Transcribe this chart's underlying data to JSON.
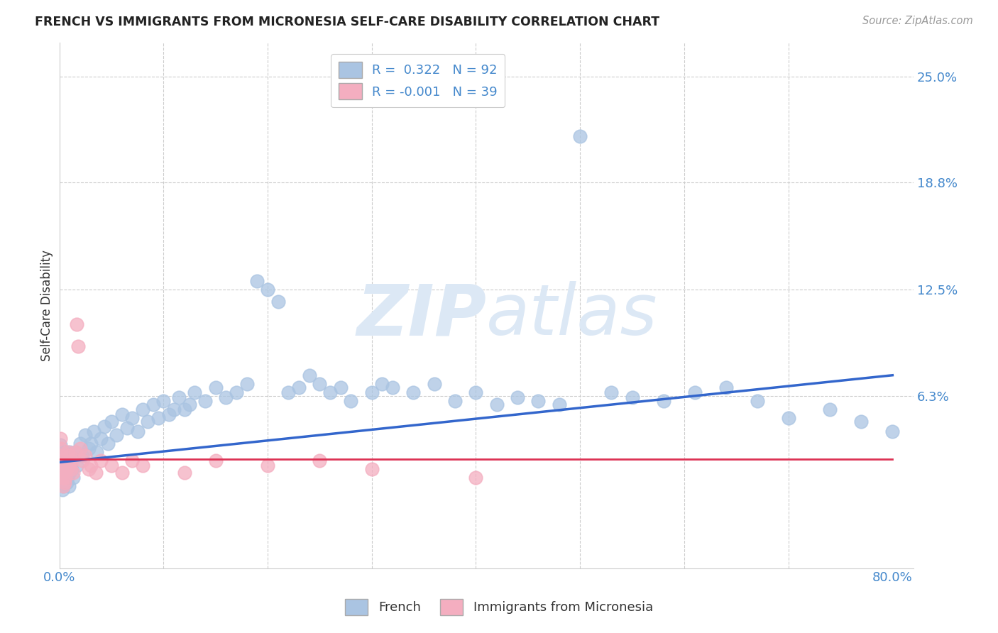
{
  "title": "FRENCH VS IMMIGRANTS FROM MICRONESIA SELF-CARE DISABILITY CORRELATION CHART",
  "source": "Source: ZipAtlas.com",
  "ylabel": "Self-Care Disability",
  "xlim": [
    0.0,
    0.82
  ],
  "ylim": [
    -0.038,
    0.27
  ],
  "ytick_values": [
    0.0,
    0.063,
    0.125,
    0.188,
    0.25
  ],
  "ytick_labels": [
    "",
    "6.3%",
    "12.5%",
    "18.8%",
    "25.0%"
  ],
  "xtick_values": [
    0.0,
    0.1,
    0.2,
    0.3,
    0.4,
    0.5,
    0.6,
    0.7,
    0.8
  ],
  "xtick_labels": [
    "0.0%",
    "",
    "",
    "",
    "",
    "",
    "",
    "",
    "80.0%"
  ],
  "french_R": 0.322,
  "french_N": 92,
  "micro_R": -0.001,
  "micro_N": 39,
  "french_color": "#aac4e2",
  "french_edge_color": "#aac4e2",
  "french_line_color": "#3366cc",
  "micro_color": "#f4aec0",
  "micro_edge_color": "#f4aec0",
  "micro_line_color": "#dd3355",
  "grid_color": "#cccccc",
  "title_color": "#222222",
  "source_color": "#999999",
  "label_color": "#333333",
  "tick_color": "#4488cc",
  "watermark_color": "#dce8f5",
  "french_x": [
    0.001,
    0.001,
    0.002,
    0.002,
    0.002,
    0.003,
    0.003,
    0.003,
    0.004,
    0.004,
    0.004,
    0.005,
    0.005,
    0.006,
    0.006,
    0.007,
    0.007,
    0.008,
    0.008,
    0.009,
    0.009,
    0.01,
    0.01,
    0.011,
    0.012,
    0.013,
    0.015,
    0.017,
    0.02,
    0.022,
    0.025,
    0.028,
    0.03,
    0.033,
    0.036,
    0.04,
    0.043,
    0.047,
    0.05,
    0.055,
    0.06,
    0.065,
    0.07,
    0.075,
    0.08,
    0.085,
    0.09,
    0.095,
    0.1,
    0.105,
    0.11,
    0.115,
    0.12,
    0.125,
    0.13,
    0.14,
    0.15,
    0.16,
    0.17,
    0.18,
    0.19,
    0.2,
    0.21,
    0.22,
    0.23,
    0.24,
    0.25,
    0.26,
    0.27,
    0.28,
    0.3,
    0.31,
    0.32,
    0.34,
    0.36,
    0.38,
    0.4,
    0.42,
    0.44,
    0.46,
    0.48,
    0.5,
    0.53,
    0.55,
    0.58,
    0.61,
    0.64,
    0.67,
    0.7,
    0.74,
    0.77,
    0.8
  ],
  "french_y": [
    0.034,
    0.028,
    0.025,
    0.02,
    0.015,
    0.018,
    0.012,
    0.008,
    0.022,
    0.016,
    0.01,
    0.03,
    0.014,
    0.025,
    0.018,
    0.02,
    0.012,
    0.028,
    0.015,
    0.022,
    0.01,
    0.03,
    0.018,
    0.025,
    0.02,
    0.015,
    0.03,
    0.022,
    0.035,
    0.028,
    0.04,
    0.032,
    0.035,
    0.042,
    0.03,
    0.038,
    0.045,
    0.035,
    0.048,
    0.04,
    0.052,
    0.044,
    0.05,
    0.042,
    0.055,
    0.048,
    0.058,
    0.05,
    0.06,
    0.052,
    0.055,
    0.062,
    0.055,
    0.058,
    0.065,
    0.06,
    0.068,
    0.062,
    0.065,
    0.07,
    0.13,
    0.125,
    0.118,
    0.065,
    0.068,
    0.075,
    0.07,
    0.065,
    0.068,
    0.06,
    0.065,
    0.07,
    0.068,
    0.065,
    0.07,
    0.06,
    0.065,
    0.058,
    0.062,
    0.06,
    0.058,
    0.215,
    0.065,
    0.062,
    0.06,
    0.065,
    0.068,
    0.06,
    0.05,
    0.055,
    0.048,
    0.042
  ],
  "micro_x": [
    0.001,
    0.001,
    0.002,
    0.002,
    0.003,
    0.003,
    0.004,
    0.004,
    0.005,
    0.005,
    0.006,
    0.006,
    0.007,
    0.008,
    0.009,
    0.01,
    0.011,
    0.012,
    0.013,
    0.015,
    0.017,
    0.018,
    0.02,
    0.022,
    0.025,
    0.028,
    0.03,
    0.035,
    0.04,
    0.05,
    0.06,
    0.07,
    0.08,
    0.12,
    0.15,
    0.2,
    0.25,
    0.3,
    0.4
  ],
  "micro_y": [
    0.038,
    0.028,
    0.032,
    0.02,
    0.025,
    0.015,
    0.018,
    0.01,
    0.022,
    0.012,
    0.025,
    0.015,
    0.02,
    0.03,
    0.022,
    0.028,
    0.02,
    0.025,
    0.018,
    0.03,
    0.105,
    0.092,
    0.032,
    0.025,
    0.028,
    0.02,
    0.022,
    0.018,
    0.025,
    0.022,
    0.018,
    0.025,
    0.022,
    0.018,
    0.025,
    0.022,
    0.025,
    0.02,
    0.015
  ],
  "french_line_x": [
    0.0,
    0.8
  ],
  "french_line_y": [
    0.024,
    0.075
  ],
  "micro_line_x": [
    0.0,
    0.8
  ],
  "micro_line_y": [
    0.026,
    0.026
  ]
}
